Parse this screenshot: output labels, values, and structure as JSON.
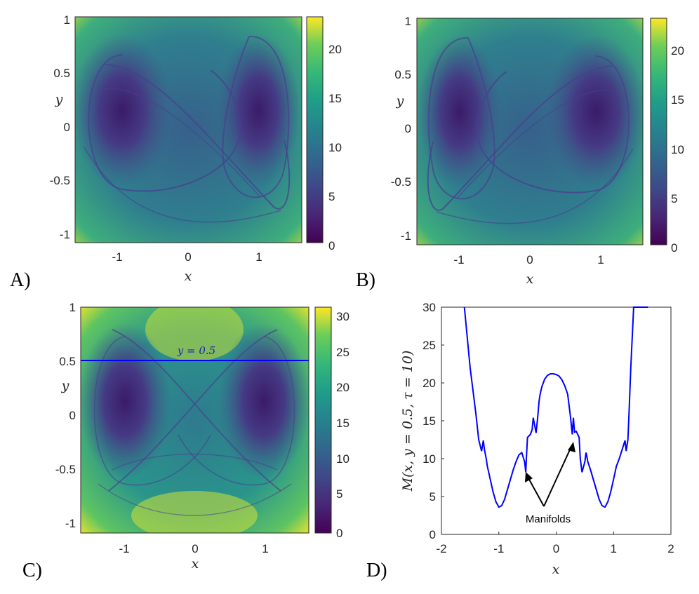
{
  "panels": {
    "A": {
      "letter": "A)",
      "xlabel": "x",
      "ylabel": "y",
      "x_ticks": [
        "-1",
        "0",
        "1"
      ],
      "y_ticks": [
        "1",
        "0.5",
        "0",
        "-0.5",
        "-1"
      ],
      "colorbar_ticks": [
        "20",
        "15",
        "10",
        "5",
        "0"
      ]
    },
    "B": {
      "letter": "B)",
      "xlabel": "x",
      "ylabel": "y",
      "x_ticks": [
        "-1",
        "0",
        "1"
      ],
      "y_ticks": [
        "1",
        "0.5",
        "0",
        "-0.5",
        "-1"
      ],
      "colorbar_ticks": [
        "20",
        "15",
        "10",
        "5",
        "0"
      ]
    },
    "C": {
      "letter": "C)",
      "xlabel": "x",
      "ylabel": "y",
      "x_ticks": [
        "-1",
        "0",
        "1"
      ],
      "y_ticks": [
        "1",
        "0.5",
        "0",
        "-0.5",
        "-1"
      ],
      "colorbar_ticks": [
        "30",
        "25",
        "20",
        "15",
        "10",
        "5",
        "0"
      ],
      "line_label": "y = 0.5"
    },
    "D": {
      "letter": "D)",
      "xlabel": "x",
      "ylabel": "M(x, y = 0.5, τ = 10)",
      "x_ticks": [
        "-2",
        "-1",
        "0",
        "1",
        "2"
      ],
      "y_ticks": [
        "30",
        "25",
        "20",
        "15",
        "10",
        "5",
        "0"
      ],
      "annotation": "Manifolds"
    }
  },
  "colors": {
    "viridis_low": "#440154",
    "viridis_mid": "#21918c",
    "viridis_high": "#fde725",
    "line": "#0000ff"
  },
  "chart_data": [
    {
      "type": "heatmap",
      "panel": "A",
      "colormap": "viridis",
      "xlim": [
        -1.6,
        1.6
      ],
      "ylim": [
        -1.1,
        1.0
      ],
      "clim": [
        0,
        23
      ],
      "minima": [
        {
          "x": -0.95,
          "y": 0.1
        },
        {
          "x": 0.95,
          "y": 0.1
        }
      ]
    },
    {
      "type": "heatmap",
      "panel": "B",
      "colormap": "viridis",
      "xlim": [
        -1.6,
        1.6
      ],
      "ylim": [
        -1.1,
        1.0
      ],
      "clim": [
        0,
        23
      ],
      "minima": [
        {
          "x": -0.95,
          "y": 0.1
        },
        {
          "x": 0.95,
          "y": 0.1
        }
      ]
    },
    {
      "type": "heatmap",
      "panel": "C",
      "colormap": "viridis",
      "xlim": [
        -1.6,
        1.6
      ],
      "ylim": [
        -1.1,
        1.0
      ],
      "clim": [
        0,
        31
      ],
      "minima": [
        {
          "x": -0.95,
          "y": 0.1
        },
        {
          "x": 0.95,
          "y": 0.1
        }
      ],
      "hline_y": 0.5
    },
    {
      "type": "line",
      "panel": "D",
      "xlim": [
        -2,
        2
      ],
      "ylim": [
        0,
        30
      ],
      "grid": false,
      "series": [
        {
          "x": [
            -1.6,
            -1.5,
            -1.4,
            -1.35,
            -1.3,
            -1.27,
            -1.25,
            -1.22,
            -1.2,
            -1.15,
            -1.1,
            -1.05,
            -1.0,
            -0.95,
            -0.9,
            -0.85,
            -0.8,
            -0.75,
            -0.7,
            -0.65,
            -0.6,
            -0.55,
            -0.53,
            -0.52,
            -0.5,
            -0.45,
            -0.42,
            -0.4,
            -0.35,
            -0.32,
            -0.3,
            -0.28,
            -0.25,
            -0.2,
            -0.15,
            -0.1,
            -0.05,
            0.0,
            0.05,
            0.1,
            0.15,
            0.2,
            0.25,
            0.28,
            0.3,
            0.32,
            0.35,
            0.4,
            0.42,
            0.45,
            0.5,
            0.52,
            0.53,
            0.55,
            0.6,
            0.65,
            0.7,
            0.75,
            0.8,
            0.85,
            0.9,
            0.95,
            1.0,
            1.05,
            1.1,
            1.15,
            1.2,
            1.22,
            1.25,
            1.27,
            1.3,
            1.35,
            1.4,
            1.5,
            1.6
          ],
          "y": [
            30,
            22,
            16,
            12.5,
            11.0,
            12.4,
            11.2,
            10.0,
            9.0,
            7.3,
            5.6,
            4.3,
            3.6,
            3.8,
            4.6,
            5.9,
            7.2,
            8.5,
            9.6,
            10.5,
            10.8,
            9.6,
            8.2,
            10.0,
            12.8,
            13.2,
            13.8,
            15.4,
            13.4,
            15.6,
            17.5,
            18.5,
            19.5,
            20.5,
            21.0,
            21.2,
            21.2,
            21.1,
            20.9,
            20.4,
            19.6,
            18.5,
            15.5,
            13.2,
            15.4,
            13.5,
            13.6,
            12.8,
            10.0,
            8.2,
            9.6,
            10.8,
            10.5,
            9.6,
            8.5,
            7.2,
            5.9,
            4.6,
            3.8,
            3.6,
            4.3,
            5.6,
            7.3,
            9.0,
            10.0,
            11.2,
            12.4,
            11.0,
            12.5,
            16,
            22,
            30,
            30,
            30,
            30
          ]
        }
      ]
    }
  ]
}
